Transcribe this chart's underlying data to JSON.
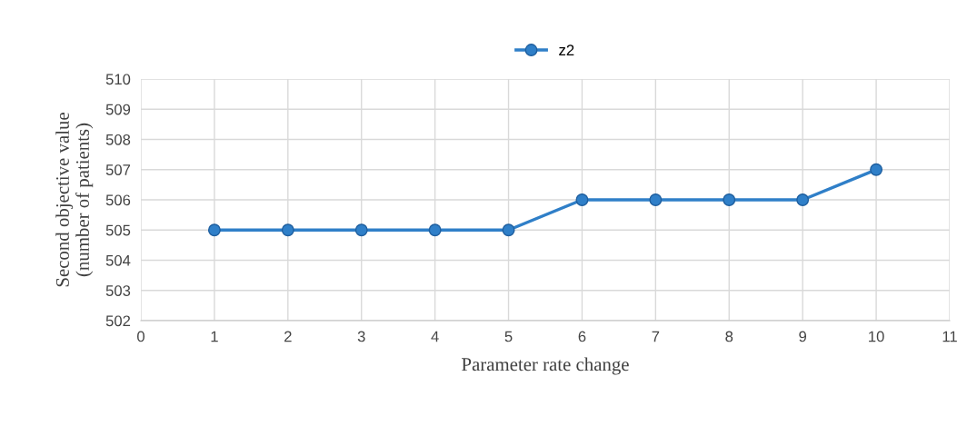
{
  "chart_data": {
    "type": "line",
    "xlabel": "Parameter rate change",
    "ylabel": "Second objective value\n(number of patients)",
    "x": [
      1,
      2,
      3,
      4,
      5,
      6,
      7,
      8,
      9,
      10
    ],
    "series": [
      {
        "name": "z2",
        "color": "#2f7fc8",
        "values": [
          505,
          505,
          505,
          505,
          505,
          506,
          506,
          506,
          506,
          507
        ]
      }
    ],
    "xlim": [
      0,
      11
    ],
    "xticks": [
      0,
      1,
      2,
      3,
      4,
      5,
      6,
      7,
      8,
      9,
      10,
      11
    ],
    "ylim": [
      502,
      510
    ],
    "yticks": [
      502,
      503,
      504,
      505,
      506,
      507,
      508,
      509,
      510
    ],
    "grid": true,
    "legend": "top",
    "marker": "circle",
    "line_style": "solid"
  }
}
